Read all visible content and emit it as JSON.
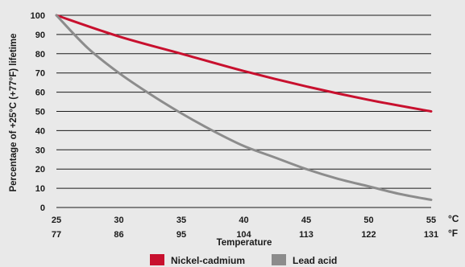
{
  "chart_data": {
    "type": "line",
    "xlabel": "Temperature",
    "ylabel": "Percentage of +25°C (+77°F) lifetime",
    "x_unit_primary": "°C",
    "x_unit_secondary": "°F",
    "xlim": [
      25,
      55
    ],
    "ylim": [
      0,
      100
    ],
    "x_ticks_c": [
      "25",
      "30",
      "35",
      "40",
      "45",
      "50",
      "55"
    ],
    "x_ticks_f": [
      "77",
      "86",
      "95",
      "104",
      "113",
      "122",
      "131"
    ],
    "y_ticks": [
      "0",
      "10",
      "20",
      "30",
      "40",
      "50",
      "60",
      "70",
      "80",
      "90",
      "100"
    ],
    "grid": "horizontal",
    "legend_position": "bottom",
    "series": [
      {
        "name": "Nickel-cadmium",
        "color": "#c8102e",
        "x": [
          25,
          30,
          35,
          40,
          45,
          50,
          55
        ],
        "y": [
          100,
          89,
          80,
          71,
          63,
          56,
          50
        ]
      },
      {
        "name": "Lead acid",
        "color": "#8c8c8c",
        "x": [
          25,
          27.5,
          30,
          32.5,
          35,
          37.5,
          40,
          42.5,
          45,
          47.5,
          50,
          52.5,
          55
        ],
        "y": [
          100,
          83,
          70,
          59,
          49,
          40,
          32,
          26,
          20,
          15,
          11,
          7,
          4
        ]
      }
    ]
  }
}
